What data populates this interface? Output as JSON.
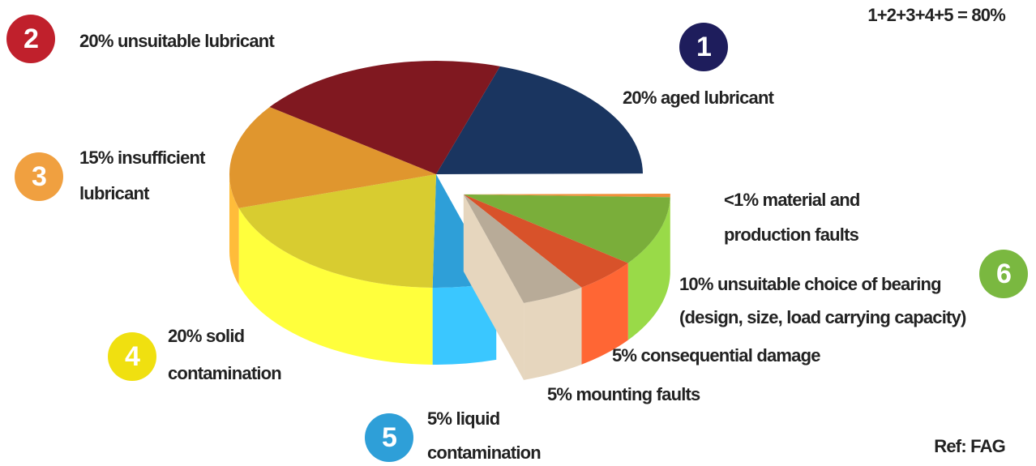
{
  "chart_data": {
    "type": "pie",
    "categories": [
      [
        "20% aged lubricant"
      ],
      [
        "<1% material and",
        "production faults"
      ],
      [
        "10% unsuitable choice of bearing",
        "(design, size, load carrying capacity)"
      ],
      [
        "5% consequential damage"
      ],
      [
        "5% mounting faults"
      ],
      [
        "5% liquid",
        "contamination"
      ],
      [
        "20% solid",
        "contamination"
      ],
      [
        "15% insufficient",
        "lubricant"
      ],
      [
        "20% unsuitable lubricant"
      ]
    ],
    "values": [
      20,
      0.5,
      10,
      5,
      5,
      5,
      20,
      15,
      20
    ],
    "colors": [
      "#1a3560",
      "#f0903a",
      "#7aae3a",
      "#d8522a",
      "#b8ab98",
      "#2e9fd8",
      "#d8cc30",
      "#e0962e",
      "#801820"
    ],
    "exploded": [
      false,
      true,
      true,
      true,
      true,
      false,
      false,
      false,
      false
    ],
    "badges": [
      {
        "label": "1",
        "color": "#1e1d5c"
      },
      {
        "label": "2",
        "color": "#c0202c"
      },
      {
        "label": "3",
        "color": "#f0a040"
      },
      {
        "label": "4",
        "color": "#f0e010"
      },
      {
        "label": "5",
        "color": "#2e9fd8"
      },
      {
        "label": "6",
        "color": "#7ab840"
      }
    ],
    "note": "1+2+3+4+5 = 80%",
    "source": "Ref: FAG"
  }
}
